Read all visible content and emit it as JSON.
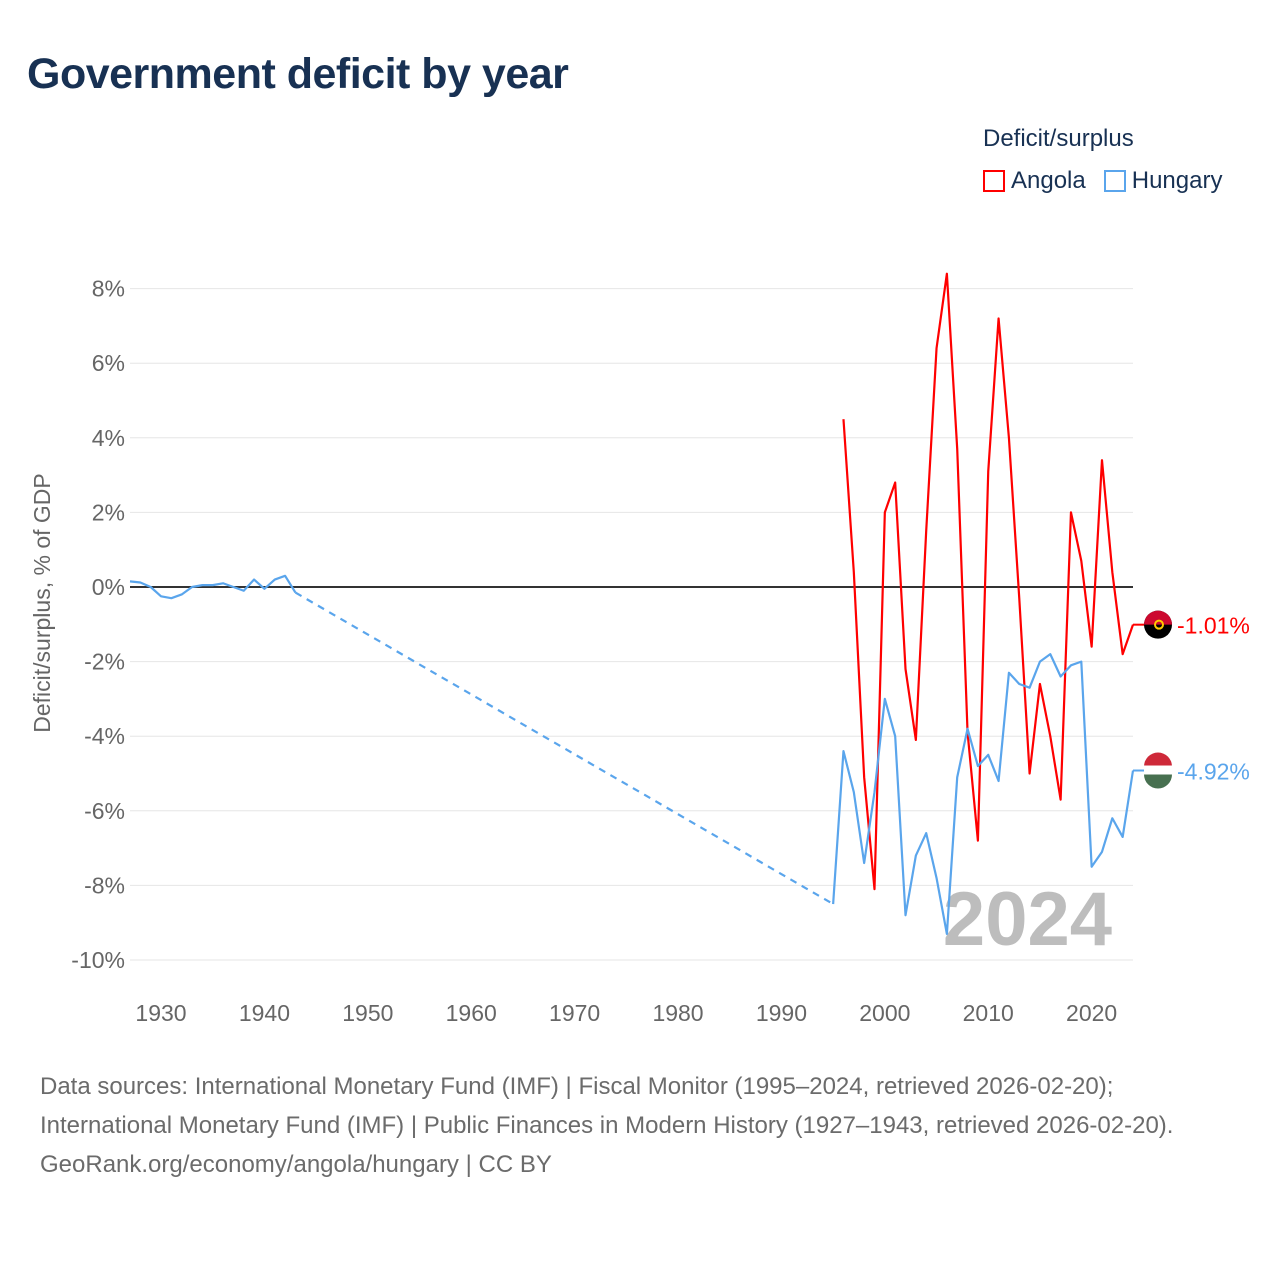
{
  "title": "Government deficit by year",
  "legend": {
    "title": "Deficit/surplus",
    "items": [
      {
        "name": "Angola",
        "color": "#ff0000"
      },
      {
        "name": "Hungary",
        "color": "#5aa5ec"
      }
    ]
  },
  "footer": {
    "sources": "Data sources: International Monetary Fund (IMF) | Fiscal Monitor (1995–2024, retrieved 2026-02-20); International Monetary Fund (IMF) | Public Finances in Modern History (1927–1943, retrieved 2026-02-20).",
    "credit": "GeoRank.org/economy/angola/hungary | CC BY"
  },
  "chart_data": {
    "type": "line",
    "title": "Government deficit by year",
    "xlabel": "",
    "ylabel": "Deficit/surplus, % of GDP",
    "xlim": [
      1927,
      2024
    ],
    "ylim": [
      -11,
      8.5
    ],
    "x_ticks": [
      1930,
      1940,
      1950,
      1960,
      1970,
      1980,
      1990,
      2000,
      2010,
      2020
    ],
    "y_ticks": [
      {
        "v": 8,
        "label": "8%"
      },
      {
        "v": 6,
        "label": "6%"
      },
      {
        "v": 4,
        "label": "4%"
      },
      {
        "v": 2,
        "label": "2%"
      },
      {
        "v": 0,
        "label": "0%"
      },
      {
        "v": -2,
        "label": "-2%"
      },
      {
        "v": -4,
        "label": "-4%"
      },
      {
        "v": -6,
        "label": "-6%"
      },
      {
        "v": -8,
        "label": "-8%"
      },
      {
        "v": -10,
        "label": "-10%"
      }
    ],
    "year_watermark": "2024",
    "series": [
      {
        "name": "Angola",
        "color": "#ff0000",
        "end_label": "-1.01%",
        "x": [
          1996,
          1997,
          1998,
          1999,
          2000,
          2001,
          2002,
          2003,
          2004,
          2005,
          2006,
          2007,
          2008,
          2009,
          2010,
          2011,
          2012,
          2013,
          2014,
          2015,
          2016,
          2017,
          2018,
          2019,
          2020,
          2021,
          2022,
          2023,
          2024
        ],
        "y": [
          4.5,
          0.4,
          -5.1,
          -8.1,
          2.0,
          2.8,
          -2.2,
          -4.1,
          1.5,
          6.4,
          8.4,
          3.7,
          -3.9,
          -6.8,
          3.1,
          7.2,
          4.0,
          -0.3,
          -5.0,
          -2.6,
          -4.0,
          -5.7,
          2.0,
          0.7,
          -1.6,
          3.4,
          0.4,
          -1.8,
          -1.01
        ]
      },
      {
        "name": "Hungary",
        "color": "#5aa5ec",
        "end_label": "-4.92%",
        "gap_after": 1943,
        "x": [
          1927,
          1928,
          1929,
          1930,
          1931,
          1932,
          1933,
          1934,
          1935,
          1936,
          1937,
          1938,
          1939,
          1940,
          1941,
          1942,
          1943,
          1995,
          1996,
          1997,
          1998,
          1999,
          2000,
          2001,
          2002,
          2003,
          2004,
          2005,
          2006,
          2007,
          2008,
          2009,
          2010,
          2011,
          2012,
          2013,
          2014,
          2015,
          2016,
          2017,
          2018,
          2019,
          2020,
          2021,
          2022,
          2023,
          2024
        ],
        "y": [
          0.15,
          0.12,
          0.0,
          -0.25,
          -0.3,
          -0.2,
          0.0,
          0.05,
          0.05,
          0.1,
          0.0,
          -0.1,
          0.2,
          -0.05,
          0.2,
          0.3,
          -0.15,
          -8.5,
          -4.4,
          -5.5,
          -7.4,
          -5.5,
          -3.0,
          -4.0,
          -8.8,
          -7.2,
          -6.6,
          -7.8,
          -9.3,
          -5.1,
          -3.8,
          -4.8,
          -4.5,
          -5.2,
          -2.3,
          -2.6,
          -2.7,
          -2.0,
          -1.8,
          -2.4,
          -2.1,
          -2.0,
          -7.5,
          -7.1,
          -6.2,
          -6.7,
          -4.92
        ]
      }
    ]
  }
}
